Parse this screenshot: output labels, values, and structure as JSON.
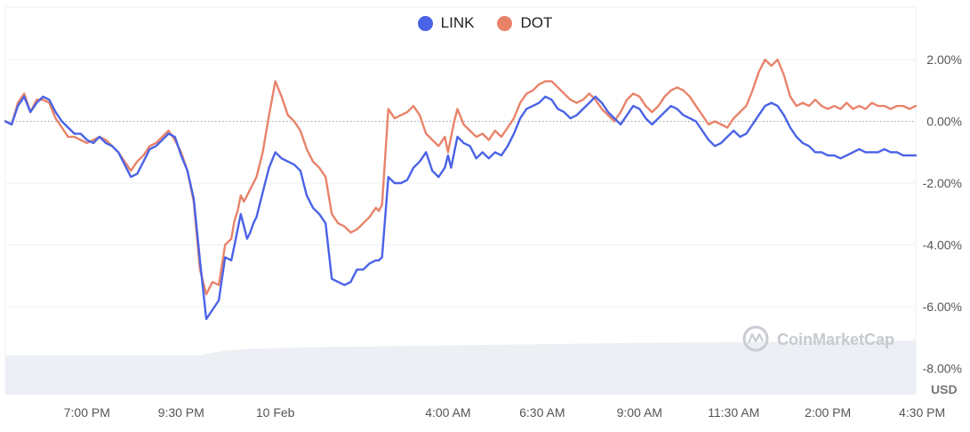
{
  "chart_data": {
    "type": "line",
    "legend_position": "top-center",
    "currency_label": "USD",
    "watermark": "CoinMarketCap",
    "y_axis": {
      "position": "right",
      "ticks": [
        2,
        0,
        -2,
        -4,
        -6,
        -8
      ],
      "tick_labels": [
        "2.00%",
        "0.00%",
        "-2.00%",
        "-4.00%",
        "-6.00%",
        "-8.00%"
      ],
      "range": [
        -8.85,
        3.7
      ],
      "zero_line": "dotted"
    },
    "x_axis": {
      "range": [
        0,
        290
      ],
      "ticks": [
        26,
        56,
        86,
        141,
        171,
        202,
        232,
        262,
        292
      ],
      "tick_labels": [
        "7:00 PM",
        "9:30 PM",
        "10 Feb",
        "4:00 AM",
        "6:30 AM",
        "9:00 AM",
        "11:30 AM",
        "2:00 PM",
        "4:30 PM"
      ]
    },
    "series": [
      {
        "name": "LINK",
        "color": "#4a63e6",
        "x": [
          0,
          2,
          4,
          6,
          8,
          10,
          12,
          14,
          16,
          18,
          20,
          22,
          24,
          26,
          28,
          30,
          32,
          34,
          36,
          38,
          40,
          42,
          44,
          46,
          48,
          50,
          52,
          54,
          56,
          58,
          60,
          62,
          64,
          66,
          68,
          70,
          72,
          73,
          74,
          75,
          76,
          77,
          78,
          79,
          80,
          82,
          84,
          86,
          88,
          90,
          92,
          94,
          96,
          98,
          100,
          102,
          104,
          106,
          108,
          110,
          112,
          114,
          116,
          118,
          119,
          120,
          122,
          124,
          126,
          128,
          130,
          132,
          134,
          136,
          138,
          140,
          141,
          142,
          143,
          144,
          146,
          148,
          150,
          152,
          154,
          156,
          158,
          160,
          162,
          164,
          166,
          168,
          170,
          172,
          174,
          176,
          178,
          180,
          182,
          184,
          186,
          188,
          190,
          192,
          194,
          196,
          198,
          200,
          202,
          204,
          206,
          208,
          210,
          212,
          214,
          216,
          218,
          220,
          222,
          224,
          226,
          228,
          230,
          232,
          234,
          236,
          238,
          240,
          242,
          244,
          246,
          248,
          250,
          252,
          254,
          256,
          258,
          260,
          262,
          264,
          266,
          268,
          270,
          272,
          274,
          276,
          278,
          280,
          282,
          284,
          286,
          288,
          290
        ],
        "y": [
          0,
          -0.1,
          0.5,
          0.8,
          0.3,
          0.6,
          0.8,
          0.7,
          0.3,
          0,
          -0.2,
          -0.4,
          -0.4,
          -0.6,
          -0.7,
          -0.5,
          -0.7,
          -0.8,
          -1,
          -1.4,
          -1.8,
          -1.7,
          -1.3,
          -0.9,
          -0.8,
          -0.6,
          -0.4,
          -0.5,
          -1.1,
          -1.6,
          -2.5,
          -4.5,
          -6.4,
          -6.1,
          -5.8,
          -4.4,
          -4.5,
          -4,
          -3.5,
          -3,
          -3.4,
          -3.8,
          -3.6,
          -3.3,
          -3.1,
          -2.3,
          -1.5,
          -1,
          -1.2,
          -1.3,
          -1.4,
          -1.6,
          -2.4,
          -2.8,
          -3,
          -3.3,
          -5.1,
          -5.2,
          -5.3,
          -5.2,
          -4.8,
          -4.8,
          -4.6,
          -4.5,
          -4.5,
          -4.4,
          -1.8,
          -2,
          -2,
          -1.9,
          -1.5,
          -1.3,
          -1,
          -1.6,
          -1.8,
          -1.5,
          -1.1,
          -1.5,
          -1,
          -0.5,
          -0.7,
          -0.8,
          -1.2,
          -1,
          -1.2,
          -1,
          -1.1,
          -0.8,
          -0.4,
          0.1,
          0.4,
          0.5,
          0.6,
          0.8,
          0.7,
          0.4,
          0.3,
          0.1,
          0.2,
          0.4,
          0.6,
          0.8,
          0.6,
          0.3,
          0.1,
          -0.1,
          0.2,
          0.5,
          0.4,
          0.1,
          -0.1,
          0.1,
          0.3,
          0.5,
          0.4,
          0.2,
          0.1,
          0,
          -0.3,
          -0.6,
          -0.8,
          -0.7,
          -0.5,
          -0.3,
          -0.5,
          -0.4,
          -0.1,
          0.2,
          0.5,
          0.6,
          0.5,
          0.2,
          -0.2,
          -0.5,
          -0.7,
          -0.8,
          -1,
          -1,
          -1.1,
          -1.1,
          -1.2,
          -1.1,
          -1,
          -0.9,
          -1,
          -1,
          -1,
          -0.9,
          -1,
          -1,
          -1.1,
          -1.1,
          -1.1
        ]
      },
      {
        "name": "DOT",
        "color": "#e8836a",
        "x": [
          0,
          2,
          4,
          6,
          8,
          10,
          12,
          14,
          16,
          18,
          20,
          22,
          24,
          26,
          28,
          30,
          32,
          34,
          36,
          38,
          40,
          42,
          44,
          46,
          48,
          50,
          52,
          54,
          56,
          58,
          60,
          62,
          64,
          66,
          68,
          70,
          72,
          73,
          74,
          75,
          76,
          77,
          78,
          79,
          80,
          82,
          84,
          86,
          88,
          90,
          92,
          94,
          96,
          98,
          100,
          102,
          104,
          106,
          108,
          110,
          112,
          114,
          116,
          118,
          119,
          120,
          122,
          124,
          126,
          128,
          130,
          132,
          134,
          136,
          138,
          140,
          141,
          142,
          143,
          144,
          146,
          148,
          150,
          152,
          154,
          156,
          158,
          160,
          162,
          164,
          166,
          168,
          170,
          172,
          174,
          176,
          178,
          180,
          182,
          184,
          186,
          188,
          190,
          192,
          194,
          196,
          198,
          200,
          202,
          204,
          206,
          208,
          210,
          212,
          214,
          216,
          218,
          220,
          222,
          224,
          226,
          228,
          230,
          232,
          234,
          236,
          238,
          240,
          242,
          244,
          246,
          248,
          250,
          252,
          254,
          256,
          258,
          260,
          262,
          264,
          266,
          268,
          270,
          272,
          274,
          276,
          278,
          280,
          282,
          284,
          286,
          288,
          290
        ],
        "y": [
          0,
          -0.1,
          0.6,
          0.9,
          0.3,
          0.7,
          0.7,
          0.6,
          0.1,
          -0.2,
          -0.5,
          -0.5,
          -0.6,
          -0.7,
          -0.6,
          -0.5,
          -0.6,
          -0.8,
          -1,
          -1.3,
          -1.6,
          -1.3,
          -1.1,
          -0.8,
          -0.7,
          -0.5,
          -0.3,
          -0.6,
          -1,
          -1.6,
          -2.6,
          -4.8,
          -5.6,
          -5.2,
          -5.3,
          -4,
          -3.8,
          -3.2,
          -2.9,
          -2.4,
          -2.6,
          -2.4,
          -2.2,
          -2,
          -1.8,
          -1,
          0.2,
          1.3,
          0.8,
          0.2,
          0,
          -0.3,
          -0.9,
          -1.3,
          -1.5,
          -1.8,
          -3,
          -3.3,
          -3.4,
          -3.6,
          -3.5,
          -3.3,
          -3.1,
          -2.8,
          -2.9,
          -2.7,
          0.4,
          0.1,
          0.2,
          0.3,
          0.5,
          0.2,
          -0.4,
          -0.6,
          -0.8,
          -0.5,
          -1,
          -0.5,
          0,
          0.4,
          -0.1,
          -0.3,
          -0.5,
          -0.4,
          -0.6,
          -0.3,
          -0.5,
          -0.2,
          0.1,
          0.6,
          0.9,
          1.0,
          1.2,
          1.3,
          1.3,
          1.1,
          0.9,
          0.7,
          0.6,
          0.7,
          0.9,
          0.7,
          0.4,
          0.2,
          0,
          0.3,
          0.7,
          0.9,
          0.8,
          0.5,
          0.3,
          0.5,
          0.8,
          1,
          1.1,
          1,
          0.8,
          0.5,
          0.2,
          -0.1,
          0,
          -0.1,
          -0.2,
          0.1,
          0.3,
          0.5,
          1,
          1.6,
          2,
          1.8,
          2.0,
          1.5,
          0.8,
          0.5,
          0.6,
          0.5,
          0.7,
          0.5,
          0.4,
          0.5,
          0.4,
          0.6,
          0.4,
          0.5,
          0.4,
          0.6,
          0.5,
          0.5,
          0.4,
          0.5,
          0.5,
          0.4,
          0.5
        ]
      }
    ],
    "volume": {
      "color": "#eceff3",
      "x": [
        0,
        62,
        70,
        80,
        100,
        140,
        180,
        200,
        230,
        262,
        290
      ],
      "values": [
        2.4,
        2.4,
        2.7,
        2.8,
        2.9,
        3.0,
        3.1,
        3.15,
        3.2,
        3.25,
        3.3
      ]
    }
  }
}
